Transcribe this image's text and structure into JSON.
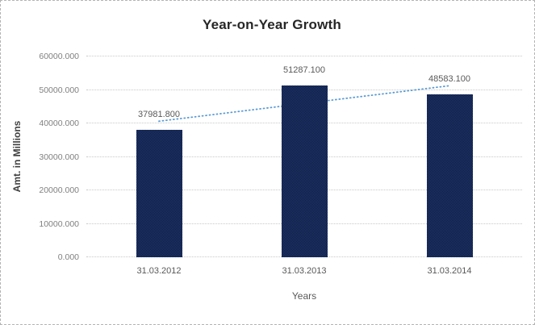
{
  "chart_data": {
    "type": "bar",
    "title": "Year-on-Year Growth",
    "xlabel": "Years",
    "ylabel": "Amt. in Millions",
    "categories": [
      "31.03.2012",
      "31.03.2013",
      "31.03.2014"
    ],
    "values": [
      37981.8,
      51287.1,
      48583.1
    ],
    "data_labels": [
      "37981.800",
      "51287.100",
      "48583.100"
    ],
    "ylim": [
      0,
      60000
    ],
    "ytick_step": 10000,
    "ytick_labels": [
      "0.000",
      "10000.000",
      "20000.000",
      "30000.000",
      "40000.000",
      "50000.000",
      "60000.000"
    ],
    "grid": "horizontal-dotted",
    "legend": "none",
    "bar_color": "#203a75",
    "gridline_color": "#c9c9c9",
    "label_color": "#595959",
    "trendline": {
      "type": "linear",
      "style": "dotted",
      "color": "#5b9bd5"
    }
  }
}
